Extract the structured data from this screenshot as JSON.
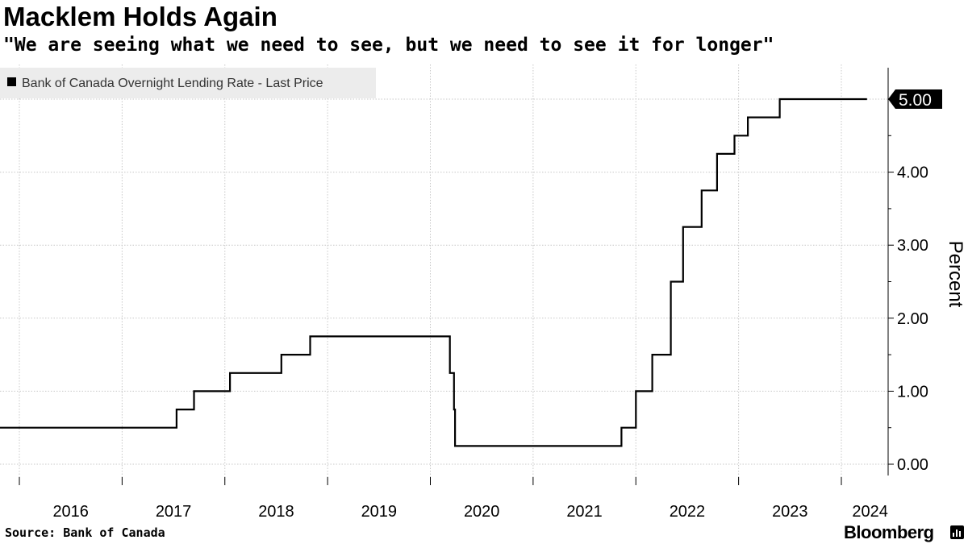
{
  "header": {
    "title": "Macklem Holds Again",
    "subtitle": "\"We are seeing what we need to see, but we need to see it for longer\""
  },
  "footer": {
    "source": "Source:  Bank of Canada",
    "brand": "Bloomberg"
  },
  "colors": {
    "line": "#000000",
    "grid": "#c8c8c8",
    "legend_bg": "#ececec"
  },
  "chart_data": {
    "type": "line",
    "title": "Macklem Holds Again",
    "subtitle": "\"We are seeing what we need to see, but we need to see it for longer\"",
    "ylabel": "Percent",
    "xlabel": "",
    "ylim": [
      0,
      5.5
    ],
    "xlim": [
      2015.45,
      2024.45
    ],
    "yticks": [
      0,
      1,
      2,
      3,
      4,
      5
    ],
    "ytick_labels": [
      "0.00",
      "1.00",
      "2.00",
      "3.00",
      "4.00",
      "5.00"
    ],
    "xticks": [
      2016,
      2017,
      2018,
      2019,
      2020,
      2021,
      2022,
      2023,
      2024
    ],
    "xtick_labels": [
      "2016",
      "2017",
      "2018",
      "2019",
      "2020",
      "2021",
      "2022",
      "2023",
      "2024"
    ],
    "grid": true,
    "legend_position": "top-left",
    "series": [
      {
        "name": "Bank of Canada Overnight Lending Rate - Last Price",
        "last_value_label": "5.00",
        "step": true,
        "x": [
          2015.45,
          2017.53,
          2017.7,
          2018.05,
          2018.55,
          2018.83,
          2020.19,
          2020.23,
          2020.24,
          2021.86,
          2022.0,
          2022.16,
          2022.34,
          2022.46,
          2022.64,
          2022.79,
          2022.96,
          2023.09,
          2023.4,
          2023.53,
          2024.25
        ],
        "values": [
          0.5,
          0.75,
          1.0,
          1.25,
          1.5,
          1.75,
          1.25,
          0.75,
          0.25,
          0.5,
          1.0,
          1.5,
          2.5,
          3.25,
          3.75,
          4.25,
          4.5,
          4.75,
          5.0,
          5.0,
          5.0
        ]
      }
    ]
  }
}
